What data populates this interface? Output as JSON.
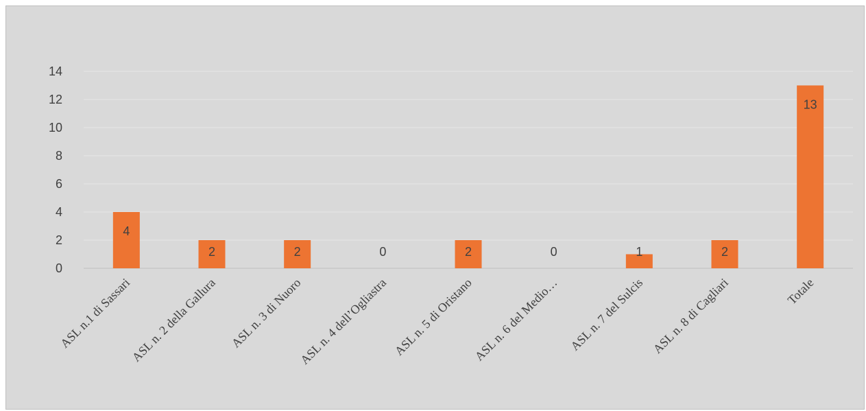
{
  "colors": {
    "background": "#d9d9d9",
    "bar": "#ed7432",
    "text": "#404040",
    "grid": "#e6e6e6"
  },
  "chart_data": {
    "type": "bar",
    "categories": [
      "ASL n.1 di Sassari",
      "ASL n. 2 della Gallura",
      "ASL n. 3 di Nuoro",
      "ASL n. 4 dell’Ogliastra",
      "ASL n. 5 di Oristano",
      "ASL n. 6 del Medio…",
      "ASL n. 7 del Sulcis",
      "ASL n. 8 di Cagliari",
      "Totale"
    ],
    "values": [
      4,
      2,
      2,
      0,
      2,
      0,
      1,
      2,
      13
    ],
    "data_labels": [
      "4",
      "2",
      "2",
      "0",
      "2",
      "0",
      "1",
      "2",
      "13"
    ],
    "yticks": [
      "0",
      "2",
      "4",
      "6",
      "8",
      "10",
      "12",
      "14"
    ],
    "ylim": [
      0,
      14
    ],
    "title": "",
    "xlabel": "",
    "ylabel": "",
    "grid": true,
    "legend": "none"
  }
}
